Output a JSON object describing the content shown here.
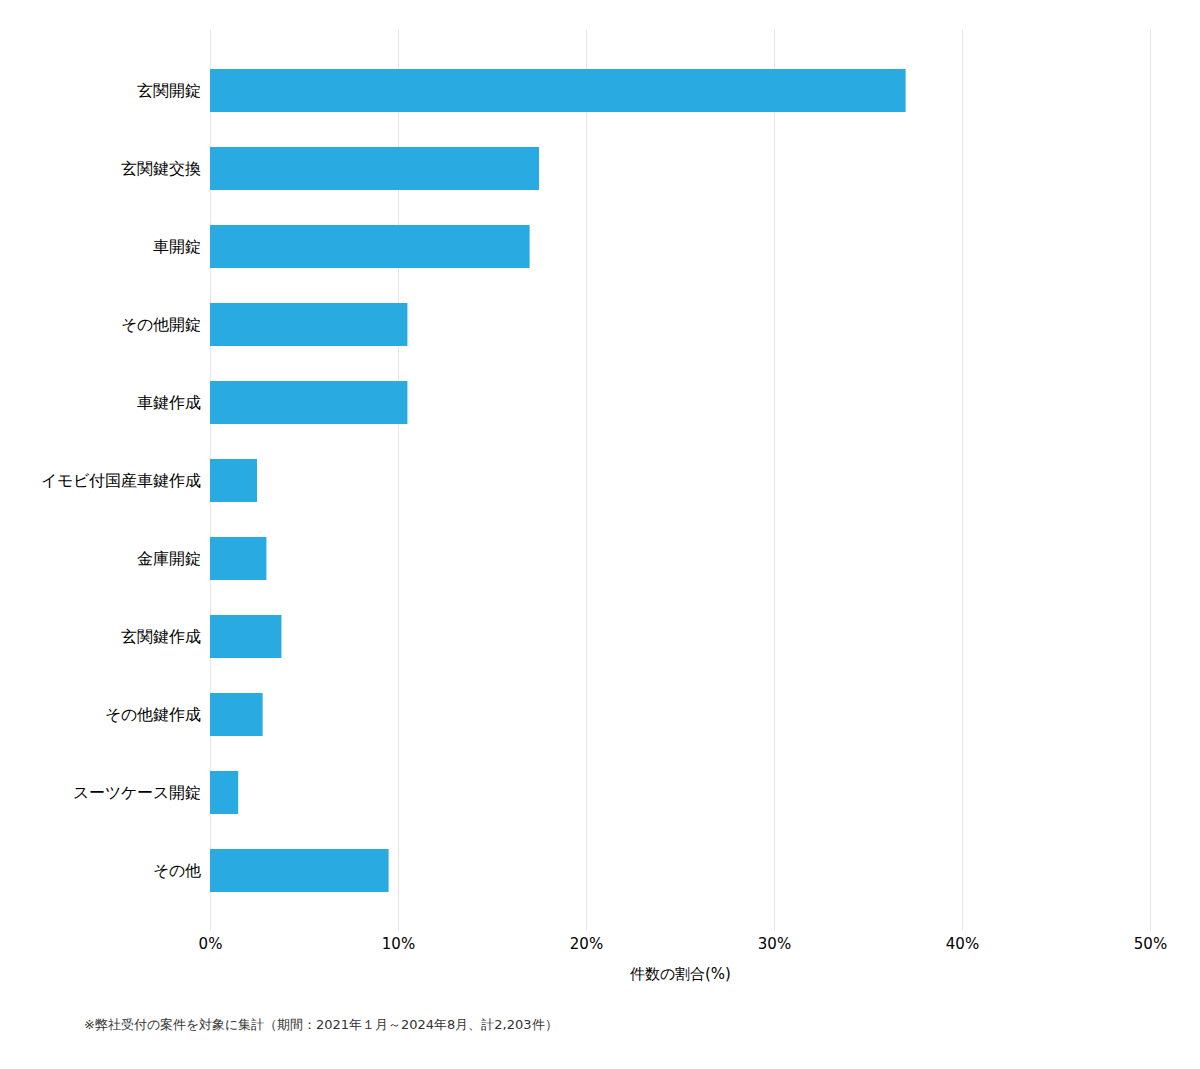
{
  "chart_data": {
    "type": "bar",
    "orientation": "horizontal",
    "categories": [
      "玄関開錠",
      "玄関鍵交換",
      "車開錠",
      "その他開錠",
      "車鍵作成",
      "イモビ付国産車鍵作成",
      "金庫開錠",
      "玄関鍵作成",
      "その他鍵作成",
      "スーツケース開錠",
      "その他"
    ],
    "values": [
      37.0,
      17.5,
      17.0,
      10.5,
      10.5,
      2.5,
      3.0,
      3.8,
      2.8,
      1.5,
      9.5
    ],
    "color": "#29abe2",
    "xlabel": "件数の割合(%)",
    "xlim": [
      0,
      50
    ],
    "xticks": [
      {
        "value": 0,
        "label": "0%"
      },
      {
        "value": 10,
        "label": "10%"
      },
      {
        "value": 20,
        "label": "20%"
      },
      {
        "value": 30,
        "label": "30%"
      },
      {
        "value": 40,
        "label": "40%"
      },
      {
        "value": 50,
        "label": "50%"
      }
    ],
    "grid": true,
    "footnote": "※弊社受付の案件を対象に集計（期間：2021年１月～2024年8月、計2,203件）"
  }
}
